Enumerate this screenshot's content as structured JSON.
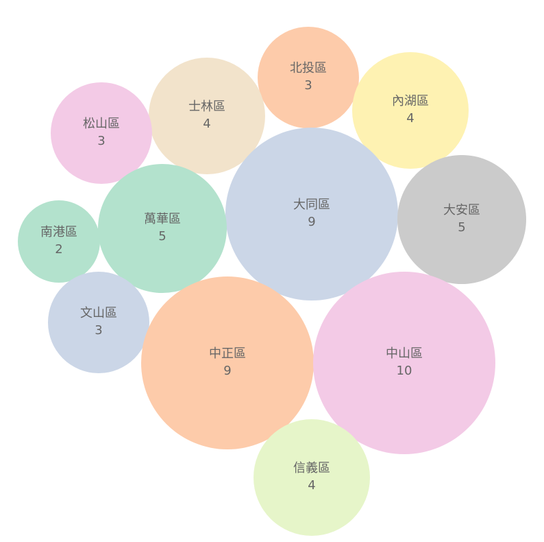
{
  "chart_data": {
    "type": "bubble",
    "title": "",
    "items": [
      {
        "name": "北投區",
        "value": 3,
        "color": "#fdcbaa"
      },
      {
        "name": "內湖區",
        "value": 4,
        "color": "#fef2b2"
      },
      {
        "name": "士林區",
        "value": 4,
        "color": "#f2e3cb"
      },
      {
        "name": "松山區",
        "value": 3,
        "color": "#f3cae6"
      },
      {
        "name": "大同區",
        "value": 9,
        "color": "#cbd6e7"
      },
      {
        "name": "大安區",
        "value": 5,
        "color": "#cbcbcb"
      },
      {
        "name": "萬華區",
        "value": 5,
        "color": "#b3e2cd"
      },
      {
        "name": "南港區",
        "value": 2,
        "color": "#b3e2cd"
      },
      {
        "name": "文山區",
        "value": 3,
        "color": "#cbd6e7"
      },
      {
        "name": "中正區",
        "value": 9,
        "color": "#fdcbaa"
      },
      {
        "name": "中山區",
        "value": 10,
        "color": "#f3cae6"
      },
      {
        "name": "信義區",
        "value": 4,
        "color": "#e6f5c9"
      }
    ]
  }
}
